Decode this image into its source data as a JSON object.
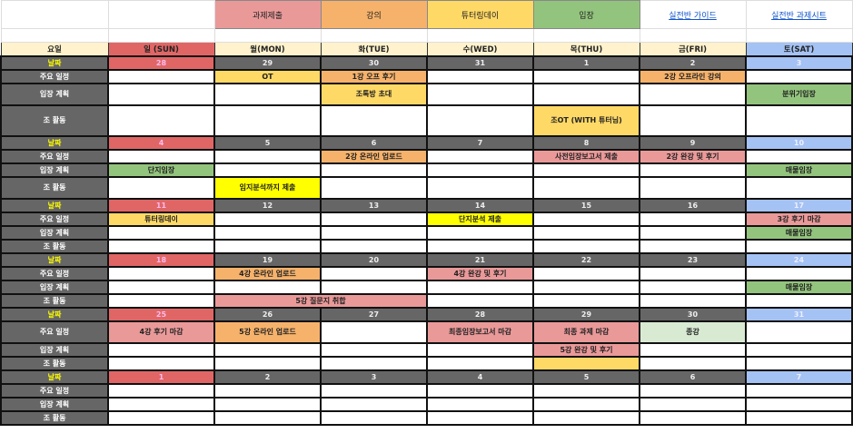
{
  "header": {
    "legend": [
      {
        "label": "과제제출",
        "color": "#ea9999"
      },
      {
        "label": "강의",
        "color": "#f6b26b"
      },
      {
        "label": "튜터링데이",
        "color": "#ffd966"
      },
      {
        "label": "입장",
        "color": "#93c47d"
      }
    ],
    "links": [
      "실전반 가이드",
      "실전반 과제시트"
    ]
  },
  "weekday_label": "요일",
  "weekdays": [
    "일 (SUN)",
    "월(MON)",
    "화(TUE)",
    "수(WED)",
    "목(THU)",
    "금(FRI)",
    "토(SAT)"
  ],
  "row_labels": {
    "date": "날짜",
    "schedule": "주요 일정",
    "plan": "입장 계획",
    "activity": "조 활동"
  },
  "colors": {
    "sunday": "#e06666",
    "saturday": "#a4c2f4",
    "label_bg": "#666666",
    "weekday_bg": "#fff2cc",
    "assignment": "#ea9999",
    "lecture": "#f6b26b",
    "tutoring": "#ffd966",
    "visit": "#93c47d",
    "highlight": "#ffff00",
    "end": "#d9ead3"
  },
  "weeks": [
    {
      "dates": [
        "28",
        "29",
        "30",
        "31",
        "1",
        "2",
        "3"
      ],
      "schedule": [
        null,
        {
          "t": "OT",
          "c": "#ffd966"
        },
        {
          "t": "1강 오프 후기",
          "c": "#f6b26b"
        },
        null,
        null,
        {
          "t": "2강 오프라인 강의",
          "c": "#f6b26b"
        },
        null
      ],
      "plan": [
        null,
        null,
        {
          "t": "조톡방 초대",
          "c": "#ffd966"
        },
        null,
        null,
        null,
        {
          "t": "분위기입장",
          "c": "#93c47d"
        }
      ],
      "activity": [
        null,
        null,
        null,
        null,
        {
          "t": "조OT (WITH 튜터님)",
          "c": "#ffd966"
        },
        null,
        null
      ]
    },
    {
      "dates": [
        "4",
        "5",
        "6",
        "7",
        "8",
        "9",
        "10"
      ],
      "schedule": [
        null,
        null,
        {
          "t": "2강 온라인 업로드",
          "c": "#f6b26b"
        },
        null,
        {
          "t": "사전임장보고서 제출",
          "c": "#ea9999"
        },
        {
          "t": "2강 완강 및 후기",
          "c": "#ea9999"
        },
        null
      ],
      "plan": [
        {
          "t": "단지임장",
          "c": "#93c47d"
        },
        null,
        null,
        null,
        null,
        null,
        {
          "t": "매물임장",
          "c": "#93c47d"
        }
      ],
      "activity": [
        null,
        {
          "t": "임지분석까지 제출",
          "c": "#ffff00"
        },
        null,
        null,
        null,
        null,
        null
      ]
    },
    {
      "dates": [
        "11",
        "12",
        "13",
        "14",
        "15",
        "16",
        "17"
      ],
      "schedule": [
        {
          "t": "튜터링데이",
          "c": "#ffd966"
        },
        null,
        null,
        {
          "t": "단지분석 제출",
          "c": "#ffff00"
        },
        null,
        null,
        {
          "t": "3강 후기 마감",
          "c": "#ea9999"
        }
      ],
      "plan": [
        null,
        null,
        null,
        null,
        null,
        null,
        {
          "t": "매물임장",
          "c": "#93c47d"
        }
      ],
      "activity": [
        null,
        null,
        null,
        null,
        null,
        null,
        null
      ]
    },
    {
      "dates": [
        "18",
        "19",
        "20",
        "21",
        "22",
        "23",
        "24"
      ],
      "schedule": [
        null,
        {
          "t": "4강 온라인 업로드",
          "c": "#f6b26b"
        },
        null,
        {
          "t": "4강 완강 및 후기",
          "c": "#ea9999"
        },
        null,
        null,
        null
      ],
      "plan": [
        null,
        null,
        null,
        null,
        null,
        null,
        {
          "t": "매물임장",
          "c": "#93c47d"
        }
      ],
      "activity": [
        null,
        {
          "t": "5강 질문지 취합",
          "c": "#ea9999",
          "span": 2
        },
        null,
        null,
        null,
        null
      ]
    },
    {
      "dates": [
        "25",
        "26",
        "27",
        "28",
        "29",
        "30",
        "31"
      ],
      "schedule": [
        {
          "t": "4강 후기 마감",
          "c": "#ea9999"
        },
        {
          "t": "5강 온라인 업로드",
          "c": "#f6b26b"
        },
        null,
        {
          "t": "최종임장보고서 마감",
          "c": "#ea9999"
        },
        {
          "t": "최종 과제 마감",
          "c": "#ea9999"
        },
        {
          "t": "종강",
          "c": "#d9ead3"
        },
        null
      ],
      "plan": [
        null,
        null,
        null,
        null,
        {
          "t": "5강 완강 및 후기",
          "c": "#ea9999"
        },
        null,
        null
      ],
      "activity": [
        null,
        null,
        null,
        null,
        {
          "t": "",
          "c": "#ffd966"
        },
        null,
        null
      ]
    },
    {
      "dates": [
        "1",
        "2",
        "3",
        "4",
        "5",
        "6",
        "7"
      ],
      "schedule": [
        null,
        null,
        null,
        null,
        null,
        null,
        null
      ],
      "plan": [
        null,
        null,
        null,
        null,
        null,
        null,
        null
      ],
      "activity": [
        null,
        null,
        null,
        null,
        null,
        null,
        null
      ]
    }
  ]
}
